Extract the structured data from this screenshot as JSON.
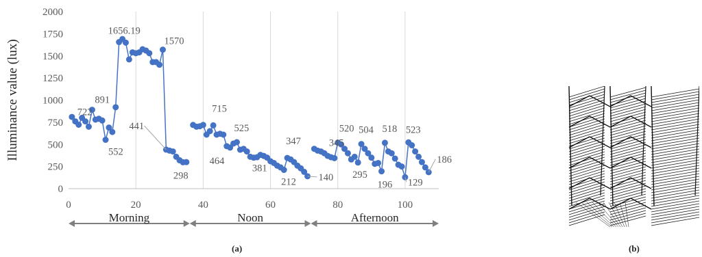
{
  "captions": {
    "a": "(a)",
    "b": "(b)"
  },
  "chart_data": {
    "type": "line",
    "ylabel": "Illuminance value (lux)",
    "xlabel": "",
    "xlim": [
      0,
      110
    ],
    "ylim": [
      0,
      2000
    ],
    "xticks": [
      0,
      20,
      40,
      60,
      80,
      100
    ],
    "yticks": [
      0,
      250,
      500,
      750,
      1000,
      1250,
      1500,
      1750,
      2000
    ],
    "grid": "vertical",
    "series_color": "#4472C4",
    "segments": [
      {
        "x": [
          1,
          2,
          3,
          4,
          5,
          6,
          7,
          8,
          9,
          10,
          11,
          12,
          13,
          14,
          15,
          16,
          17,
          18,
          19,
          20,
          21,
          22,
          23,
          24,
          25,
          26,
          27,
          28,
          29,
          30,
          31,
          32,
          33,
          34,
          35
        ],
        "y": [
          810,
          760,
          722,
          800,
          760,
          700,
          891,
          780,
          790,
          770,
          552,
          690,
          640,
          920,
          1656.19,
          1690,
          1650,
          1460,
          1540,
          1530,
          1540,
          1575,
          1560,
          1530,
          1430,
          1430,
          1400,
          1570,
          441,
          430,
          420,
          360,
          320,
          298,
          300
        ]
      },
      {
        "x": [
          37,
          38,
          39,
          40,
          41,
          42,
          43,
          44,
          45,
          46,
          47,
          48,
          49,
          50,
          51,
          52,
          53,
          54,
          55,
          56,
          57,
          58,
          59,
          60,
          61,
          62,
          63,
          64,
          65,
          66,
          67,
          68,
          69,
          70,
          71
        ],
        "y": [
          720,
          700,
          705,
          720,
          610,
          650,
          715,
          610,
          620,
          610,
          480,
          464,
          510,
          525,
          440,
          450,
          420,
          360,
          350,
          355,
          381,
          370,
          350,
          310,
          290,
          260,
          240,
          212,
          347,
          330,
          300,
          260,
          230,
          190,
          140
        ]
      },
      {
        "x": [
          73,
          74,
          75,
          76,
          77,
          78,
          79,
          80,
          81,
          82,
          83,
          84,
          85,
          86,
          87,
          88,
          89,
          90,
          91,
          92,
          93,
          94,
          95,
          96,
          97,
          98,
          99,
          100,
          101,
          102,
          103,
          104,
          105,
          106,
          107
        ],
        "y": [
          450,
          430,
          420,
          400,
          370,
          355,
          345,
          520,
          500,
          450,
          400,
          330,
          360,
          295,
          504,
          450,
          400,
          350,
          280,
          290,
          196,
          518,
          420,
          400,
          340,
          270,
          250,
          129,
          523,
          490,
          420,
          360,
          300,
          240,
          186
        ]
      }
    ],
    "data_labels": [
      {
        "text": "722",
        "x": 3,
        "y": 722
      },
      {
        "text": "891",
        "x": 7,
        "y": 891
      },
      {
        "text": "552",
        "x": 11,
        "y": 552
      },
      {
        "text": "1656.19",
        "x": 15,
        "y": 1656.19
      },
      {
        "text": "1570",
        "x": 28,
        "y": 1570
      },
      {
        "text": "441",
        "x": 29,
        "y": 441
      },
      {
        "text": "298",
        "x": 34,
        "y": 298
      },
      {
        "text": "715",
        "x": 43,
        "y": 715
      },
      {
        "text": "525",
        "x": 50,
        "y": 525
      },
      {
        "text": "464",
        "x": 48,
        "y": 464
      },
      {
        "text": "381",
        "x": 57,
        "y": 381
      },
      {
        "text": "347",
        "x": 65,
        "y": 347
      },
      {
        "text": "212",
        "x": 64,
        "y": 212
      },
      {
        "text": "140",
        "x": 71,
        "y": 140
      },
      {
        "text": "345",
        "x": 79,
        "y": 345
      },
      {
        "text": "520",
        "x": 80,
        "y": 520
      },
      {
        "text": "295",
        "x": 86,
        "y": 295
      },
      {
        "text": "504",
        "x": 87,
        "y": 504
      },
      {
        "text": "518",
        "x": 94,
        "y": 518
      },
      {
        "text": "196",
        "x": 93,
        "y": 196
      },
      {
        "text": "523",
        "x": 101,
        "y": 523
      },
      {
        "text": "129",
        "x": 100,
        "y": 129
      },
      {
        "text": "186",
        "x": 107,
        "y": 186
      }
    ],
    "periods": [
      {
        "label": "Morning",
        "from": 0,
        "to": 36
      },
      {
        "label": "Noon",
        "from": 36,
        "to": 72
      },
      {
        "label": "Afternoon",
        "from": 72,
        "to": 110
      }
    ]
  }
}
